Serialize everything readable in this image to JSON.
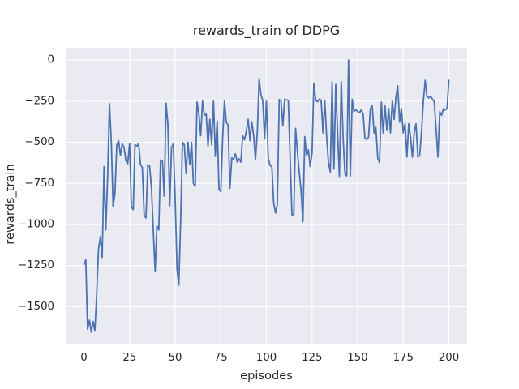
{
  "figure": {
    "title": "rewards_train of DDPG",
    "xlabel": "episodes",
    "ylabel": "rewards_train"
  },
  "chart_data": {
    "type": "line",
    "title": "rewards_train of DDPG",
    "xlabel": "episodes",
    "ylabel": "rewards_train",
    "legend": "none",
    "grid": true,
    "axes_background": "#eaeaf2",
    "grid_color": "#ffffff",
    "line_color": "#4c72b0",
    "text_color": "#262626",
    "x_ticks": [
      0,
      25,
      50,
      75,
      100,
      125,
      150,
      175,
      200
    ],
    "y_ticks": [
      0,
      -250,
      -500,
      -750,
      -1000,
      -1250,
      -1500
    ],
    "xlim": [
      -10,
      210
    ],
    "ylim": [
      -1730,
      75
    ],
    "x_start": 0,
    "x_step": 1,
    "series": [
      {
        "name": "rewards_train",
        "values": [
          -1245,
          -1215,
          -1638,
          -1582,
          -1655,
          -1590,
          -1648,
          -1420,
          -1150,
          -1075,
          -1200,
          -648,
          -1033,
          -700,
          -265,
          -500,
          -890,
          -810,
          -515,
          -490,
          -580,
          -508,
          -533,
          -613,
          -630,
          -508,
          -894,
          -910,
          -515,
          -523,
          -508,
          -637,
          -653,
          -943,
          -960,
          -637,
          -645,
          -777,
          -1030,
          -1287,
          -1008,
          -1033,
          -607,
          -615,
          -828,
          -262,
          -385,
          -886,
          -533,
          -508,
          -844,
          -1271,
          -1369,
          -976,
          -500,
          -516,
          -690,
          -500,
          -633,
          -500,
          -751,
          -767,
          -255,
          -330,
          -460,
          -250,
          -336,
          -328,
          -525,
          -360,
          -515,
          -250,
          -585,
          -370,
          -785,
          -800,
          -480,
          -245,
          -378,
          -395,
          -780,
          -595,
          -603,
          -570,
          -620,
          -600,
          -620,
          -460,
          -485,
          -430,
          -360,
          -490,
          -375,
          -460,
          -606,
          -440,
          -112,
          -212,
          -245,
          -480,
          -250,
          -598,
          -640,
          -650,
          -870,
          -930,
          -880,
          -240,
          -245,
          -400,
          -238,
          -242,
          -245,
          -600,
          -941,
          -940,
          -415,
          -560,
          -680,
          -800,
          -983,
          -465,
          -580,
          -547,
          -647,
          -565,
          -140,
          -245,
          -253,
          -237,
          -245,
          -443,
          -246,
          -468,
          -623,
          -680,
          -131,
          -663,
          -148,
          -443,
          -712,
          -131,
          -460,
          -688,
          -705,
          0,
          -705,
          -238,
          -312,
          -303,
          -312,
          -320,
          -303,
          -328,
          -476,
          -484,
          -468,
          -295,
          -279,
          -443,
          -410,
          -598,
          -623,
          -255,
          -443,
          -279,
          -427,
          -295,
          -443,
          -246,
          -361,
          -221,
          -156,
          -377,
          -295,
          -443,
          -387,
          -590,
          -387,
          -470,
          -590,
          -440,
          -387,
          -590,
          -582,
          -436,
          -255,
          -123,
          -221,
          -230,
          -221,
          -237,
          -254,
          -418,
          -590,
          -313,
          -337,
          -296,
          -303,
          -295,
          -123
        ]
      }
    ]
  }
}
